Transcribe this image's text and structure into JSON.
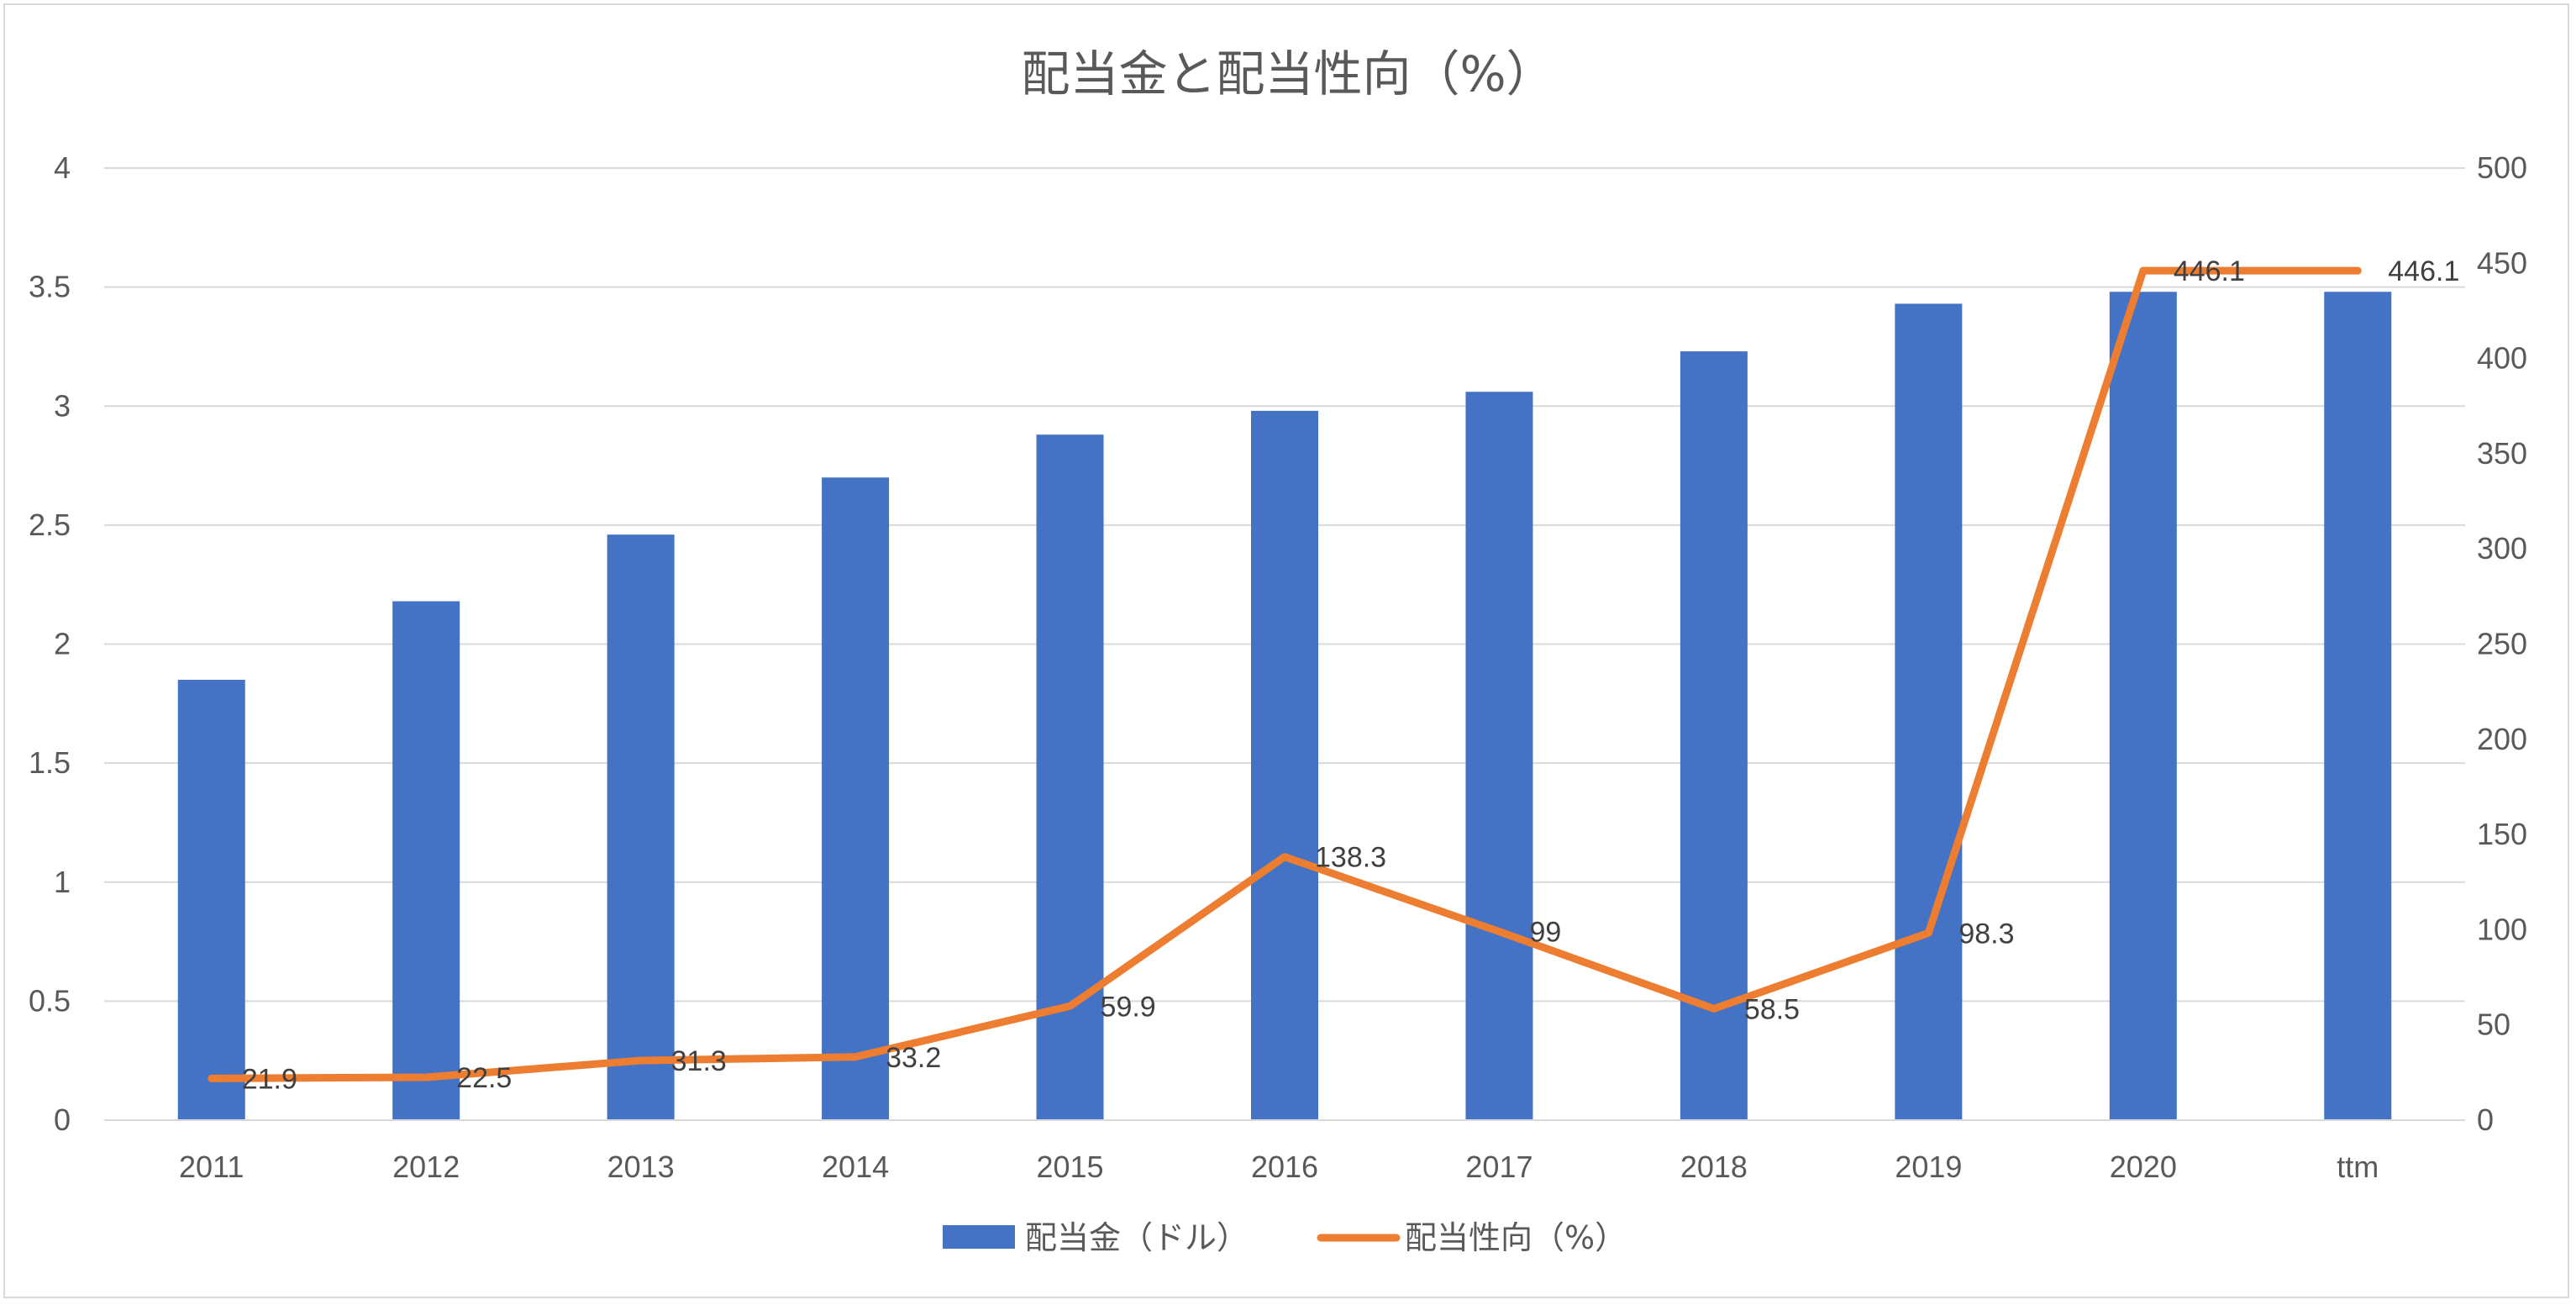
{
  "chart_data": {
    "type": "bar",
    "title": "配当金と配当性向（%）",
    "categories": [
      "2011",
      "2012",
      "2013",
      "2014",
      "2015",
      "2016",
      "2017",
      "2018",
      "2019",
      "2020",
      "ttm"
    ],
    "series": [
      {
        "name": "配当金（ドル）",
        "type": "bar",
        "axis": "left",
        "color": "#4472C4",
        "values": [
          1.85,
          2.18,
          2.46,
          2.7,
          2.88,
          2.98,
          3.06,
          3.23,
          3.43,
          3.48,
          3.48
        ]
      },
      {
        "name": "配当性向（%）",
        "type": "line",
        "axis": "right",
        "color": "#ED7D31",
        "values": [
          21.9,
          22.5,
          31.3,
          33.2,
          59.9,
          138.3,
          99,
          58.5,
          98.3,
          446.1,
          446.1
        ],
        "labels": [
          "21.9",
          "22.5",
          "31.3",
          "33.2",
          "59.9",
          "138.3",
          "99",
          "58.5",
          "98.3",
          "446.1",
          "446.1"
        ]
      }
    ],
    "y_left": {
      "min": 0,
      "max": 4,
      "ticks": [
        "0",
        "0.5",
        "1",
        "1.5",
        "2",
        "2.5",
        "3",
        "3.5",
        "4"
      ]
    },
    "y_right": {
      "min": 0,
      "max": 500,
      "ticks": [
        "0",
        "50",
        "100",
        "150",
        "200",
        "250",
        "300",
        "350",
        "400",
        "450",
        "500"
      ]
    },
    "grid": true,
    "legend": "bottom-center"
  }
}
